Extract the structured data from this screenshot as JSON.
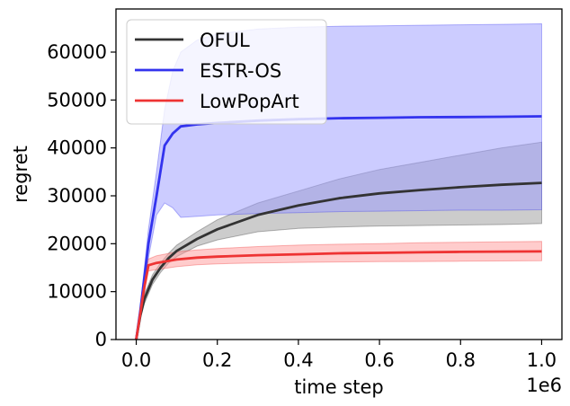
{
  "chart_data": {
    "type": "line",
    "xlabel": "time step",
    "ylabel": "regret",
    "x_offset_text": "1e6",
    "xlim": [
      -0.05,
      1.05
    ],
    "ylim": [
      0,
      69000
    ],
    "xticks": [
      0.0,
      0.2,
      0.4,
      0.6,
      0.8,
      1.0
    ],
    "xtick_labels": [
      "0.0",
      "0.2",
      "0.4",
      "0.6",
      "0.8",
      "1.0"
    ],
    "yticks": [
      0,
      10000,
      20000,
      30000,
      40000,
      50000,
      60000
    ],
    "ytick_labels": [
      "0",
      "10000",
      "20000",
      "30000",
      "40000",
      "50000",
      "60000"
    ],
    "legend_position": "top-left",
    "series": [
      {
        "name": "OFUL",
        "color": "#333333",
        "band_color": "#999999",
        "x": [
          0,
          0.01,
          0.02,
          0.04,
          0.06,
          0.08,
          0.1,
          0.15,
          0.2,
          0.3,
          0.4,
          0.5,
          0.6,
          0.7,
          0.8,
          0.9,
          1.0
        ],
        "mean": [
          0,
          5000,
          8500,
          12500,
          15000,
          17000,
          18500,
          21000,
          23000,
          26000,
          28000,
          29500,
          30500,
          31200,
          31800,
          32300,
          32700
        ],
        "upper": [
          0,
          5600,
          9500,
          13500,
          16000,
          18000,
          19700,
          22500,
          25000,
          28500,
          31000,
          33500,
          35500,
          37000,
          38500,
          40000,
          41200
        ],
        "lower": [
          0,
          4400,
          7500,
          11500,
          14000,
          16000,
          17300,
          19500,
          20800,
          22500,
          23200,
          23500,
          23700,
          23800,
          23900,
          24000,
          24200
        ]
      },
      {
        "name": "ESTR-OS",
        "color": "#3333ee",
        "band_color": "#9999ff",
        "x": [
          0,
          0.01,
          0.02,
          0.03,
          0.05,
          0.07,
          0.09,
          0.11,
          0.15,
          0.2,
          0.3,
          0.4,
          0.5,
          0.6,
          0.7,
          0.8,
          0.9,
          1.0
        ],
        "mean": [
          0,
          6000,
          13000,
          20000,
          30000,
          40500,
          43000,
          44500,
          44900,
          45200,
          45700,
          46000,
          46200,
          46300,
          46400,
          46450,
          46500,
          46600
        ],
        "upper": [
          0,
          7000,
          15000,
          23000,
          35000,
          48000,
          56000,
          60000,
          62500,
          63800,
          64800,
          65200,
          65400,
          65500,
          65600,
          65700,
          65800,
          65900
        ],
        "lower": [
          0,
          5000,
          11000,
          17000,
          26000,
          28500,
          27500,
          25500,
          25700,
          26000,
          26300,
          26500,
          26700,
          26800,
          26900,
          27000,
          27000,
          27100
        ]
      },
      {
        "name": "LowPopArt",
        "color": "#ee3333",
        "band_color": "#ff9999",
        "x": [
          0,
          0.01,
          0.02,
          0.03,
          0.05,
          0.1,
          0.15,
          0.2,
          0.3,
          0.4,
          0.5,
          0.6,
          0.7,
          0.8,
          0.9,
          1.0
        ],
        "mean": [
          0,
          5500,
          11000,
          15500,
          16000,
          16700,
          17100,
          17300,
          17600,
          17800,
          18000,
          18100,
          18200,
          18300,
          18350,
          18400
        ],
        "upper": [
          0,
          6000,
          12000,
          16800,
          17500,
          18300,
          18700,
          19000,
          19400,
          19700,
          19900,
          20000,
          20200,
          20300,
          20400,
          20500
        ],
        "lower": [
          0,
          5000,
          10000,
          14300,
          14600,
          15200,
          15600,
          15800,
          16000,
          16100,
          16200,
          16250,
          16300,
          16350,
          16400,
          16450
        ]
      }
    ]
  }
}
